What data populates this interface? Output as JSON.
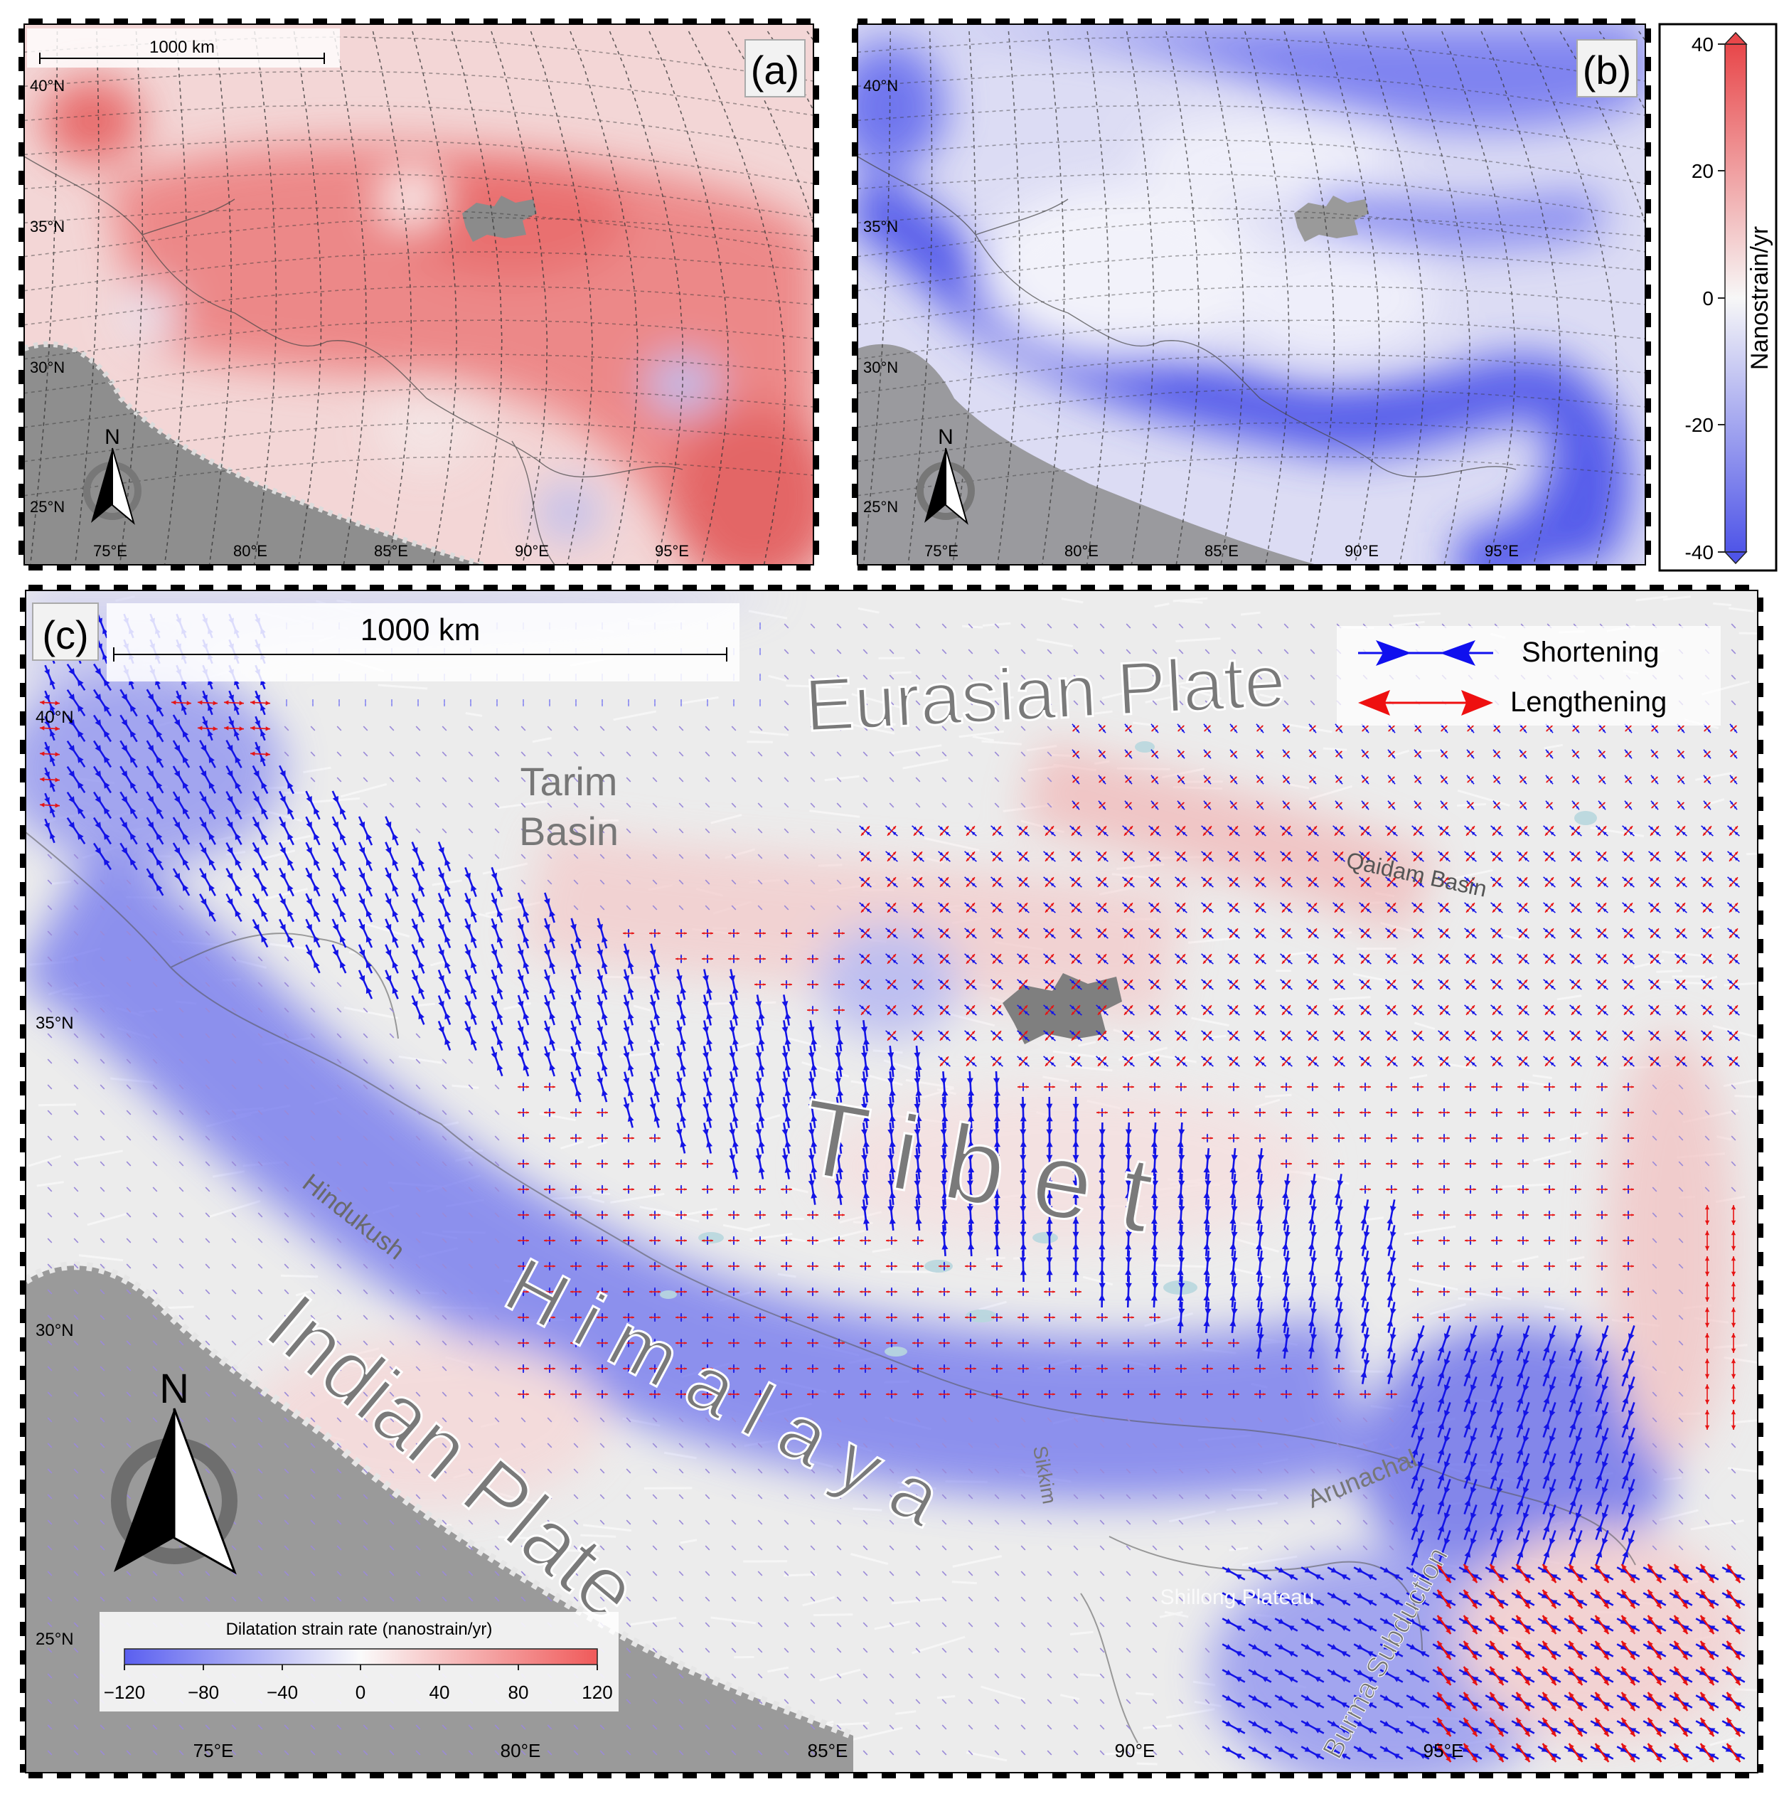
{
  "panel_a": {
    "label": "(a)",
    "scale_text": "1000 km",
    "lat_labels": [
      "40°N",
      "35°N",
      "30°N",
      "25°N"
    ],
    "lon_labels": [
      "75°E",
      "80°E",
      "85°E",
      "90°E",
      "95°E"
    ],
    "north": "N"
  },
  "panel_b": {
    "label": "(b)",
    "lat_labels": [
      "40°N",
      "35°N",
      "30°N",
      "25°N"
    ],
    "lon_labels": [
      "75°E",
      "80°E",
      "85°E",
      "90°E",
      "95°E"
    ],
    "north": "N"
  },
  "colorbar_ab": {
    "title": "Nanostrain/yr",
    "ticks": [
      "40",
      "20",
      "0",
      "-20",
      "-40"
    ],
    "colors": {
      "max": "#e8474a",
      "mid": "#f7f7f7",
      "min": "#4f55e8"
    }
  },
  "panel_c": {
    "label": "(c)",
    "scale_text": "1000 km",
    "lat_labels": [
      "40°N",
      "35°N",
      "30°N",
      "25°N"
    ],
    "lon_labels": [
      "75°E",
      "80°E",
      "85°E",
      "90°E",
      "95°E"
    ],
    "north": "N",
    "place_labels": {
      "eurasian": "Eurasian Plate",
      "tarim1": "Tarim",
      "tarim2": "Basin",
      "qaidam": "Qaidam Basin",
      "tibet": "T i b e t",
      "hindukush": "Hindukush",
      "himalaya": "H i m a l a y a",
      "indian": "Indian Plate",
      "sikkim": "Sikkim",
      "arunachal": "Arunachal",
      "shillong": "Shillong Plateau",
      "burma": "Burma Subduction"
    },
    "legend": {
      "shortening": "Shortening",
      "lengthening": "Lengthening",
      "shortening_color": "#1010ee",
      "lengthening_color": "#ee1010"
    },
    "colorbar": {
      "title": "Dilatation strain rate (nanostrain/yr)",
      "ticks": [
        "−120",
        "−80",
        "−40",
        "0",
        "40",
        "80",
        "120"
      ]
    }
  }
}
